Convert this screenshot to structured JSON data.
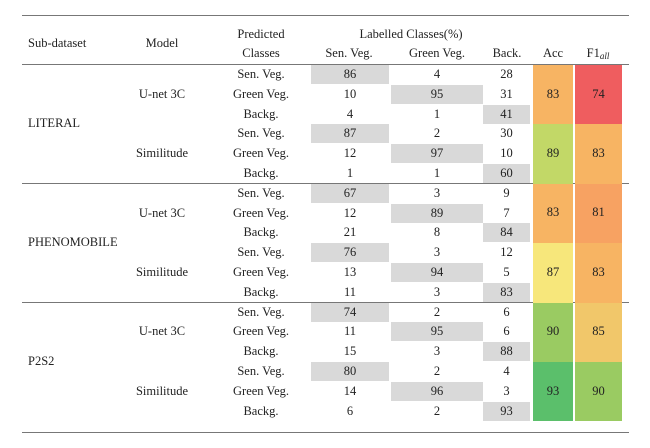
{
  "headers": {
    "subdataset": "Sub-dataset",
    "model": "Model",
    "predicted_line1": "Predicted",
    "predicted_line2": "Classes",
    "labelled": "Labelled Classes(%)",
    "sen_veg": "Sen. Veg.",
    "green_veg": "Green  Veg.",
    "back": "Back.",
    "acc": "Acc",
    "f1_base": "F1",
    "f1_sub": "all"
  },
  "colors": {
    "highlight_gray": "#d9d9d9",
    "very_high": "#5bbf6b",
    "high_green": "#9acb62",
    "light_green": "#c2d867",
    "yellow": "#f7e77b",
    "orange": "#f7b463",
    "red": "#ef5d5f"
  },
  "groups": [
    {
      "name": "LITERAL",
      "models": [
        {
          "name": "U-net 3C",
          "acc": "83",
          "f1": "74",
          "acc_color": "#f7b463",
          "f1_color": "#ef5d5f",
          "rows": [
            {
              "cls": "Sen. Veg.",
              "values": [
                "86",
                "4",
                "28"
              ]
            },
            {
              "cls": "Green  Veg.",
              "values": [
                "10",
                "95",
                "31"
              ]
            },
            {
              "cls": "Backg.",
              "values": [
                "4",
                "1",
                "41"
              ]
            }
          ]
        },
        {
          "name": "Similitude",
          "acc": "89",
          "f1": "83",
          "acc_color": "#c2d867",
          "f1_color": "#f7b463",
          "rows": [
            {
              "cls": "Sen. Veg.",
              "values": [
                "87",
                "2",
                "30"
              ]
            },
            {
              "cls": "Green  Veg.",
              "values": [
                "12",
                "97",
                "10"
              ]
            },
            {
              "cls": "Backg.",
              "values": [
                "1",
                "1",
                "60"
              ]
            }
          ]
        }
      ]
    },
    {
      "name": "PHENOMOBILE",
      "models": [
        {
          "name": "U-net 3C",
          "acc": "83",
          "f1": "81",
          "acc_color": "#f7b463",
          "f1_color": "#f7a262",
          "rows": [
            {
              "cls": "Sen. Veg.",
              "values": [
                "67",
                "3",
                "9"
              ]
            },
            {
              "cls": "Green  Veg.",
              "values": [
                "12",
                "89",
                "7"
              ]
            },
            {
              "cls": "Backg.",
              "values": [
                "21",
                "8",
                "84"
              ]
            }
          ]
        },
        {
          "name": "Similitude",
          "acc": "87",
          "f1": "83",
          "acc_color": "#f7e77b",
          "f1_color": "#f7b463",
          "rows": [
            {
              "cls": "Sen. Veg.",
              "values": [
                "76",
                "3",
                "12"
              ]
            },
            {
              "cls": "Green  Veg.",
              "values": [
                "13",
                "94",
                "5"
              ]
            },
            {
              "cls": "Backg.",
              "values": [
                "11",
                "3",
                "83"
              ]
            }
          ]
        }
      ]
    },
    {
      "name": "P2S2",
      "models": [
        {
          "name": "U-net 3C",
          "acc": "90",
          "f1": "85",
          "acc_color": "#9acb62",
          "f1_color": "#f1c76a",
          "rows": [
            {
              "cls": "Sen. Veg.",
              "values": [
                "74",
                "2",
                "6"
              ]
            },
            {
              "cls": "Green  Veg.",
              "values": [
                "11",
                "95",
                "6"
              ]
            },
            {
              "cls": "Backg.",
              "values": [
                "15",
                "3",
                "88"
              ]
            }
          ]
        },
        {
          "name": "Similitude",
          "acc": "93",
          "f1": "90",
          "acc_color": "#5bbf6b",
          "f1_color": "#9acb62",
          "rows": [
            {
              "cls": "Sen. Veg.",
              "values": [
                "80",
                "2",
                "4"
              ]
            },
            {
              "cls": "Green  Veg.",
              "values": [
                "14",
                "96",
                "3"
              ]
            },
            {
              "cls": "Backg.",
              "values": [
                "6",
                "2",
                "93"
              ]
            }
          ]
        }
      ]
    }
  ]
}
